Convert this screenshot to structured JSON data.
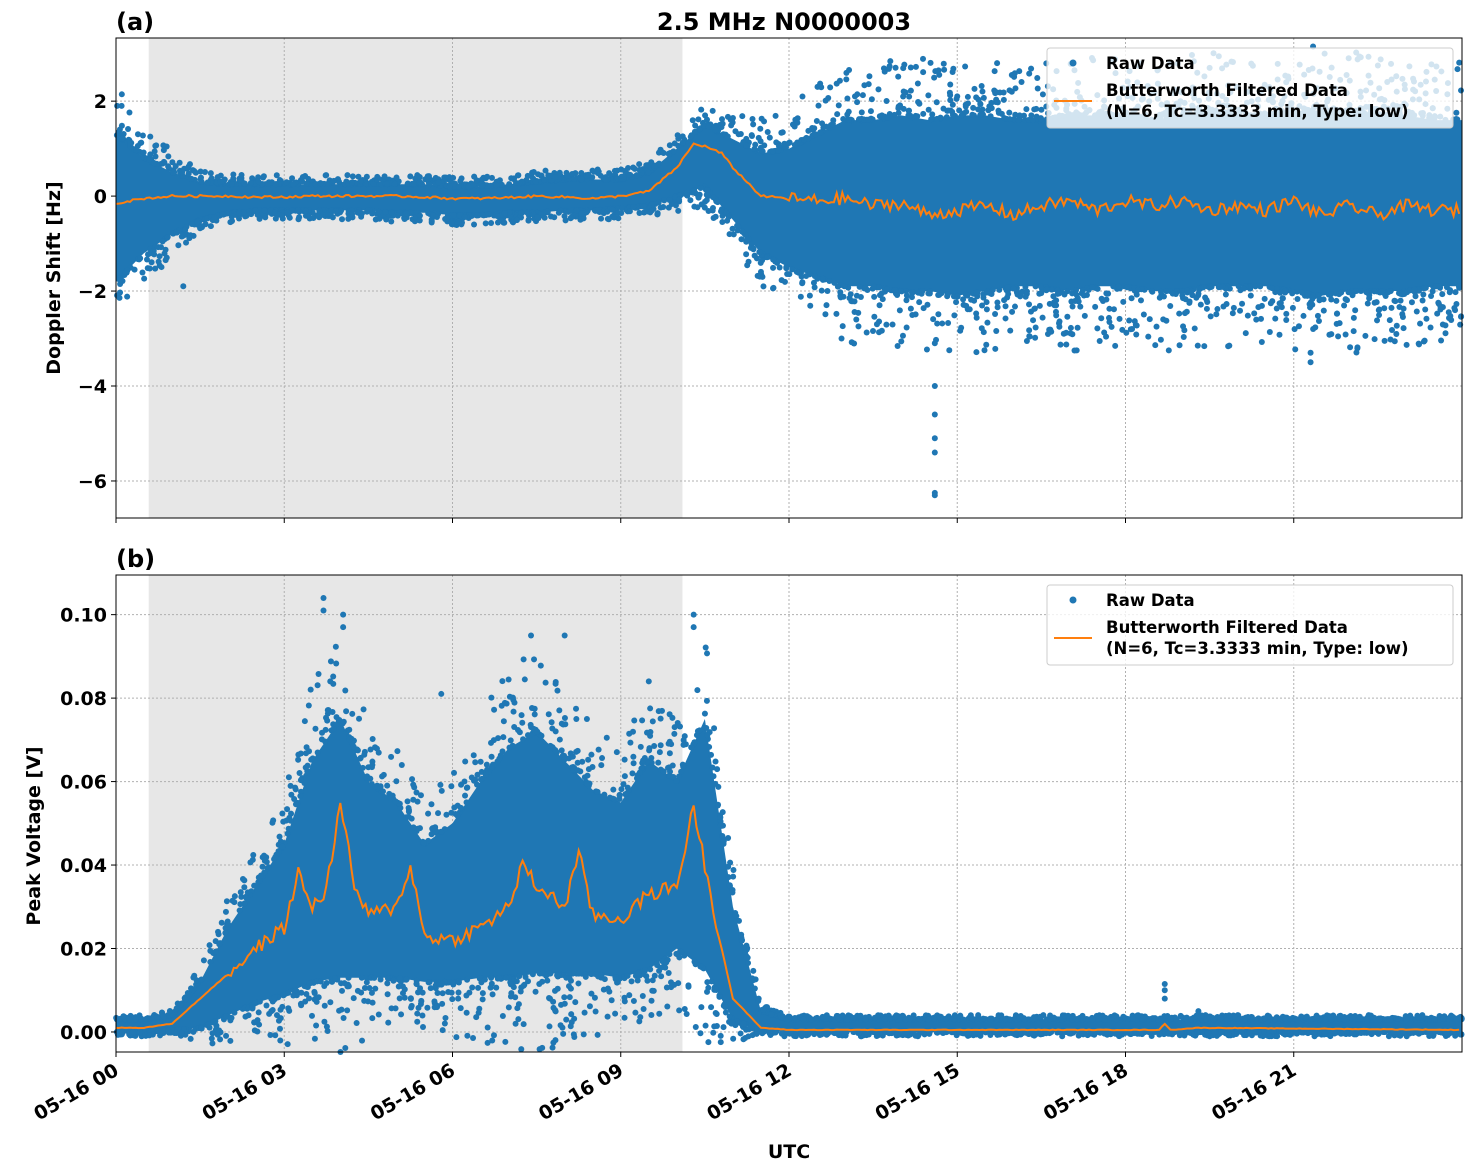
{
  "chart_data": [
    {
      "type": "scatter",
      "panel_label": "(a)",
      "title": "2.5 MHz N0000003",
      "xlabel": "",
      "ylabel": "Doppler Shift [Hz]",
      "xlim_hours": [
        0,
        24
      ],
      "ylim": [
        -6.78,
        3.33
      ],
      "yticks": [
        2,
        0,
        -2,
        -4,
        -6
      ],
      "ytick_labels": [
        "2",
        "0",
        "−2",
        "−4",
        "−6"
      ],
      "grid": true,
      "shaded_interval_utc": [
        "05-16 00:35",
        "05-16 10:06"
      ],
      "legend": {
        "placement": "top-right",
        "entries": [
          "Raw Data",
          "Butterworth Filtered Data\n(N=6, Tc=3.3333 min, Type: low)"
        ]
      },
      "series": [
        {
          "name": "Raw Data",
          "kind": "scatter",
          "color": "#1f77b4",
          "hours": [
            0,
            0.5,
            1,
            1.5,
            2,
            2.5,
            3,
            3.5,
            4,
            4.5,
            5,
            5.5,
            6,
            6.5,
            7,
            7.5,
            8,
            8.5,
            9,
            9.5,
            10,
            10.5,
            11,
            11.5,
            12,
            12.5,
            13,
            13.5,
            14,
            14.5,
            15,
            15.5,
            16,
            16.5,
            17,
            17.5,
            18,
            18.5,
            19,
            19.5,
            20,
            20.5,
            21,
            21.5,
            22,
            22.5,
            23,
            23.5,
            24
          ],
          "envelope_low": [
            -1.8,
            -1.2,
            -0.8,
            -0.5,
            -0.35,
            -0.3,
            -0.3,
            -0.3,
            -0.3,
            -0.3,
            -0.35,
            -0.35,
            -0.4,
            -0.4,
            -0.35,
            -0.35,
            -0.3,
            -0.3,
            -0.25,
            -0.2,
            0.0,
            0.2,
            -0.5,
            -1.2,
            -1.5,
            -1.7,
            -1.9,
            -1.9,
            -2.0,
            -2.0,
            -2.1,
            -2.0,
            -1.9,
            -1.9,
            -2.0,
            -1.9,
            -1.9,
            -2.0,
            -2.0,
            -1.9,
            -1.9,
            -1.9,
            -2.0,
            -2.1,
            -2.0,
            -2.0,
            -2.0,
            -1.9,
            -1.9
          ],
          "envelope_high": [
            1.3,
            0.8,
            0.5,
            0.3,
            0.25,
            0.25,
            0.25,
            0.25,
            0.25,
            0.25,
            0.25,
            0.25,
            0.2,
            0.2,
            0.25,
            0.3,
            0.35,
            0.35,
            0.35,
            0.5,
            1.0,
            1.5,
            1.2,
            0.9,
            1.0,
            1.3,
            1.6,
            1.6,
            1.7,
            1.6,
            1.7,
            1.7,
            1.6,
            1.6,
            1.7,
            1.7,
            1.7,
            1.6,
            1.7,
            1.8,
            1.7,
            1.7,
            1.8,
            1.8,
            1.8,
            1.7,
            1.7,
            1.6,
            1.6
          ],
          "outliers": [
            [
              0.1,
              1.9
            ],
            [
              1.2,
              -1.9
            ],
            [
              13.2,
              -2.6
            ],
            [
              14.6,
              -3.1
            ],
            [
              14.6,
              -4.0
            ],
            [
              14.6,
              -4.6
            ],
            [
              14.6,
              -5.1
            ],
            [
              14.6,
              -5.4
            ],
            [
              14.6,
              -6.25
            ],
            [
              14.6,
              -6.3
            ],
            [
              15.0,
              2.1
            ],
            [
              16.9,
              -2.9
            ],
            [
              19.5,
              2.7
            ],
            [
              21.3,
              -3.3
            ],
            [
              21.3,
              -3.5
            ],
            [
              22.5,
              2.75
            ]
          ]
        },
        {
          "name": "Butterworth Filtered Data\n(N=6, Tc=3.3333 min, Type: low)",
          "kind": "line",
          "color": "#ff7f0e",
          "hours": [
            0,
            0.5,
            1,
            1.5,
            2,
            2.5,
            3,
            3.5,
            4,
            4.5,
            5,
            5.5,
            6,
            6.5,
            7,
            7.5,
            8,
            8.5,
            9,
            9.5,
            10,
            10.3,
            10.5,
            10.8,
            11,
            11.5,
            12,
            12.5,
            13,
            13.5,
            14,
            14.5,
            15,
            15.5,
            16,
            16.5,
            17,
            17.5,
            18,
            18.5,
            19,
            19.5,
            20,
            20.5,
            21,
            21.5,
            22,
            22.5,
            23,
            23.5,
            24
          ],
          "values": [
            -0.15,
            -0.05,
            0.0,
            0.0,
            0.0,
            -0.02,
            -0.02,
            0.0,
            0.0,
            0.0,
            0.0,
            -0.02,
            -0.05,
            -0.05,
            -0.03,
            0.0,
            -0.02,
            -0.05,
            0.0,
            0.1,
            0.6,
            1.1,
            1.05,
            0.9,
            0.6,
            0.0,
            -0.05,
            -0.1,
            -0.05,
            -0.2,
            -0.15,
            -0.4,
            -0.3,
            -0.2,
            -0.4,
            -0.2,
            -0.1,
            -0.3,
            -0.1,
            -0.2,
            -0.1,
            -0.3,
            -0.2,
            -0.3,
            -0.1,
            -0.4,
            -0.2,
            -0.4,
            -0.2,
            -0.3,
            -0.3
          ]
        }
      ]
    },
    {
      "type": "scatter",
      "panel_label": "(b)",
      "xlabel": "UTC",
      "ylabel": "Peak Voltage [V]",
      "xlim_hours": [
        0,
        24
      ],
      "ylim": [
        -0.0048,
        0.1095
      ],
      "yticks": [
        0.1,
        0.08,
        0.06,
        0.04,
        0.02,
        0.0
      ],
      "ytick_labels": [
        "0.10",
        "0.08",
        "0.06",
        "0.04",
        "0.02",
        "0.00"
      ],
      "xticks_hours": [
        0,
        3,
        6,
        9,
        12,
        15,
        18,
        21
      ],
      "xtick_labels": [
        "05-16 00",
        "05-16 03",
        "05-16 06",
        "05-16 09",
        "05-16 12",
        "05-16 15",
        "05-16 18",
        "05-16 21"
      ],
      "grid": true,
      "shaded_interval_utc": [
        "05-16 00:35",
        "05-16 10:06"
      ],
      "legend": {
        "placement": "top-right",
        "entries": [
          "Raw Data",
          "Butterworth Filtered Data\n(N=6, Tc=3.3333 min, Type: low)"
        ]
      },
      "series": [
        {
          "name": "Raw Data",
          "kind": "scatter",
          "color": "#1f77b4",
          "hours": [
            0,
            0.5,
            1,
            1.5,
            2,
            2.5,
            3,
            3.5,
            4,
            4.5,
            5,
            5.5,
            6,
            6.5,
            7,
            7.5,
            8,
            8.5,
            9,
            9.5,
            10,
            10.5,
            11,
            11.5,
            12,
            12.5,
            13,
            13.5,
            14,
            14.5,
            15,
            15.5,
            16,
            16.5,
            17,
            17.5,
            18,
            18.5,
            19,
            19.5,
            20,
            20.5,
            21,
            21.5,
            22,
            22.5,
            23,
            23.5,
            24
          ],
          "envelope_low": [
            0,
            0,
            0.0005,
            0.001,
            0.004,
            0.007,
            0.009,
            0.012,
            0.013,
            0.013,
            0.013,
            0.012,
            0.012,
            0.013,
            0.013,
            0.014,
            0.014,
            0.014,
            0.013,
            0.015,
            0.02,
            0.015,
            0.003,
            0.0005,
            0,
            0,
            0,
            0,
            0,
            0,
            0,
            0,
            0,
            0,
            0,
            0,
            0,
            0,
            0,
            0,
            0,
            0,
            0,
            0,
            0,
            0,
            0,
            0,
            0
          ],
          "envelope_high": [
            0.003,
            0.003,
            0.004,
            0.012,
            0.025,
            0.035,
            0.045,
            0.065,
            0.075,
            0.06,
            0.055,
            0.045,
            0.05,
            0.06,
            0.068,
            0.072,
            0.065,
            0.058,
            0.055,
            0.065,
            0.06,
            0.075,
            0.03,
            0.005,
            0.003,
            0.003,
            0.003,
            0.003,
            0.003,
            0.003,
            0.003,
            0.003,
            0.003,
            0.003,
            0.003,
            0.003,
            0.003,
            0.003,
            0.003,
            0.003,
            0.003,
            0.003,
            0.003,
            0.003,
            0.003,
            0.003,
            0.003,
            0.003,
            0.003
          ],
          "outliers": [
            [
              3.7,
              0.104
            ],
            [
              3.7,
              0.101
            ],
            [
              4.05,
              0.1
            ],
            [
              4.05,
              0.097
            ],
            [
              5.8,
              0.081
            ],
            [
              7.4,
              0.095
            ],
            [
              8.0,
              0.095
            ],
            [
              9.5,
              0.084
            ],
            [
              10.3,
              0.1
            ],
            [
              10.3,
              0.097
            ],
            [
              18.7,
              0.0115
            ],
            [
              18.7,
              0.01
            ],
            [
              18.7,
              0.008
            ],
            [
              19.3,
              0.005
            ],
            [
              19.3,
              0.004
            ]
          ]
        },
        {
          "name": "Butterworth Filtered Data\n(N=6, Tc=3.3333 min, Type: low)",
          "kind": "line",
          "color": "#ff7f0e",
          "hours": [
            0,
            0.5,
            1,
            1.5,
            2,
            2.5,
            3,
            3.25,
            3.5,
            3.75,
            4,
            4.25,
            4.5,
            5,
            5.25,
            5.5,
            6,
            6.5,
            7,
            7.25,
            7.5,
            8,
            8.25,
            8.5,
            9,
            9.5,
            10,
            10.3,
            10.5,
            10.8,
            11,
            11.5,
            12,
            18.6,
            18.7,
            18.8,
            19.3,
            24
          ],
          "values": [
            0.001,
            0.001,
            0.002,
            0.008,
            0.014,
            0.02,
            0.025,
            0.038,
            0.03,
            0.034,
            0.055,
            0.035,
            0.028,
            0.03,
            0.04,
            0.023,
            0.022,
            0.025,
            0.03,
            0.04,
            0.035,
            0.03,
            0.043,
            0.028,
            0.027,
            0.033,
            0.035,
            0.054,
            0.04,
            0.02,
            0.008,
            0.001,
            0.0005,
            0.0005,
            0.002,
            0.0005,
            0.001,
            0.0005
          ]
        }
      ]
    }
  ],
  "legend_labels": {
    "raw": "Raw Data",
    "filtered_line1": "Butterworth Filtered Data",
    "filtered_line2": "(N=6, Tc=3.3333 min, Type: low)"
  }
}
